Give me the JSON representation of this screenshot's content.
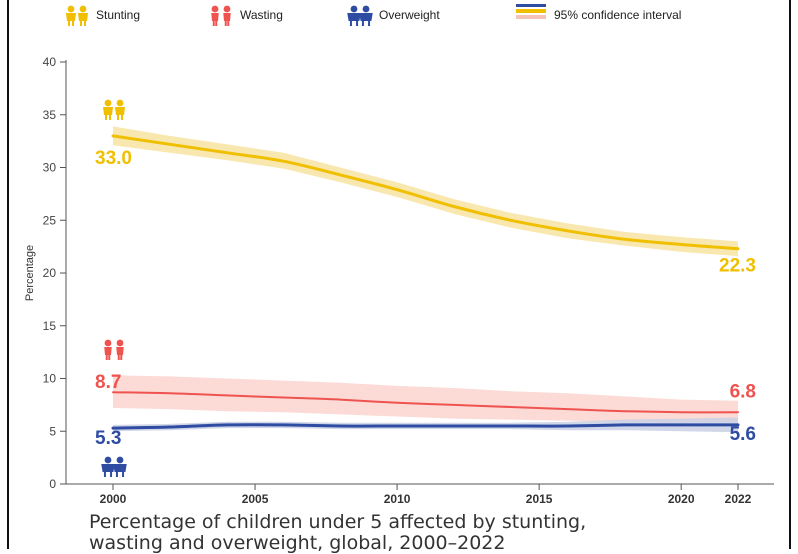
{
  "caption": {
    "line1": "Percentage of children under 5 affected by stunting,",
    "line2": "wasting and overweight, global, 2000–2022"
  },
  "legend": [
    {
      "label": "Stunting",
      "icon": "stunting-children-icon"
    },
    {
      "label": "Wasting",
      "icon": "wasting-children-icon"
    },
    {
      "label": "Overweight",
      "icon": "overweight-children-icon"
    },
    {
      "label": "95% confidence interval",
      "icon": "confidence-interval-swatch"
    }
  ],
  "colors": {
    "stunting": "#f0bf00",
    "stunting_band": "#f7e3a1",
    "wasting": "#ef5350",
    "wasting_band": "#fbd3cf",
    "overweight": "#2f4ca3",
    "overweight_band": "#c9d0e4",
    "axis": "#555555"
  },
  "chart_data": {
    "type": "line",
    "xlabel": "",
    "ylabel": "Percentage",
    "xlim": [
      1999,
      2023
    ],
    "ylim": [
      0,
      40
    ],
    "yticks": [
      "0",
      "5",
      "10",
      "15",
      "20",
      "25",
      "30",
      "35",
      "40"
    ],
    "xticks": [
      "2000",
      "2005",
      "2010",
      "2015",
      "2020",
      "2022"
    ],
    "x": [
      2000,
      2002,
      2004,
      2006,
      2008,
      2010,
      2012,
      2014,
      2016,
      2018,
      2020,
      2022
    ],
    "series": [
      {
        "name": "Stunting",
        "color_key": "stunting",
        "values": [
          33.0,
          32.2,
          31.4,
          30.6,
          29.3,
          27.9,
          26.3,
          25.0,
          24.0,
          23.2,
          22.7,
          22.3
        ],
        "ci_lower": [
          32.1,
          31.4,
          30.7,
          29.9,
          28.6,
          27.2,
          25.6,
          24.3,
          23.3,
          22.6,
          22.0,
          21.6
        ],
        "ci_upper": [
          33.9,
          33.0,
          32.2,
          31.4,
          30.0,
          28.6,
          27.0,
          25.7,
          24.7,
          23.9,
          23.4,
          23.0
        ],
        "start_label": "33.0",
        "end_label": "22.3"
      },
      {
        "name": "Wasting",
        "color_key": "wasting",
        "values": [
          8.7,
          8.6,
          8.4,
          8.2,
          8.0,
          7.7,
          7.5,
          7.3,
          7.1,
          6.9,
          6.8,
          6.8
        ],
        "ci_lower": [
          7.2,
          7.1,
          6.9,
          6.8,
          6.6,
          6.4,
          6.2,
          6.1,
          6.0,
          5.9,
          5.9,
          5.9
        ],
        "ci_upper": [
          10.3,
          10.2,
          10.0,
          9.8,
          9.6,
          9.3,
          9.1,
          8.8,
          8.6,
          8.3,
          8.0,
          7.9
        ],
        "start_label": "8.7",
        "end_label": "6.8"
      },
      {
        "name": "Overweight",
        "color_key": "overweight",
        "values": [
          5.3,
          5.4,
          5.6,
          5.6,
          5.5,
          5.5,
          5.5,
          5.5,
          5.5,
          5.6,
          5.6,
          5.6
        ],
        "ci_lower": [
          5.0,
          5.1,
          5.3,
          5.3,
          5.2,
          5.2,
          5.2,
          5.2,
          5.1,
          5.1,
          5.0,
          4.9
        ],
        "ci_upper": [
          5.6,
          5.7,
          5.9,
          5.9,
          5.8,
          5.8,
          5.8,
          5.8,
          5.9,
          6.1,
          6.2,
          6.3
        ],
        "start_label": "5.3",
        "end_label": "5.6"
      }
    ]
  }
}
